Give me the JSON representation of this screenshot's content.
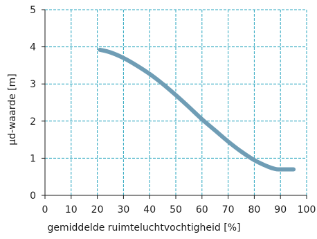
{
  "chart_data": {
    "type": "line",
    "xlabel": "gemiddelde ruimteluchtvochtigheid [%]",
    "ylabel": "µd-waarde [m]",
    "xlim": [
      0,
      100
    ],
    "ylim": [
      0,
      5
    ],
    "xticks": [
      "0",
      "10",
      "20",
      "30",
      "40",
      "50",
      "60",
      "70",
      "80",
      "90",
      "100"
    ],
    "yticks": [
      "0",
      "1",
      "2",
      "3",
      "4",
      "5"
    ],
    "grid": true,
    "series": [
      {
        "color": "#6f9db5",
        "x": [
          21,
          25,
          30,
          35,
          40,
          45,
          50,
          55,
          60,
          65,
          70,
          75,
          80,
          85,
          88,
          90,
          95
        ],
        "y": [
          3.92,
          3.85,
          3.7,
          3.5,
          3.27,
          3.0,
          2.7,
          2.38,
          2.05,
          1.75,
          1.45,
          1.18,
          0.95,
          0.78,
          0.71,
          0.7,
          0.7
        ]
      }
    ]
  }
}
